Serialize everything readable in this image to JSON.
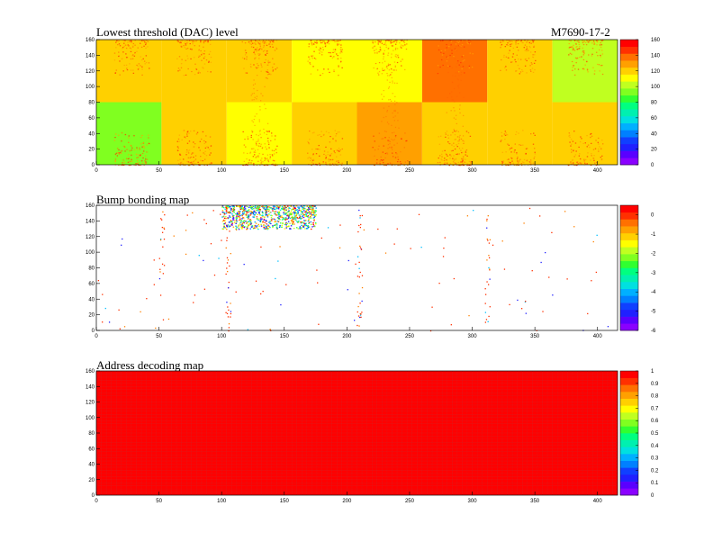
{
  "header": {
    "device_id": "M7690-17-2"
  },
  "chart_data": [
    {
      "type": "heatmap",
      "title": "Lowest threshold (DAC) level",
      "xlim": [
        0,
        416
      ],
      "ylim": [
        0,
        160
      ],
      "x_ticks": [
        "0",
        "50",
        "100",
        "150",
        "200",
        "250",
        "300",
        "350",
        "400"
      ],
      "y_ticks": [
        "0",
        "20",
        "40",
        "60",
        "80",
        "100",
        "120",
        "140",
        "160"
      ],
      "zlim": [
        0,
        160
      ],
      "z_ticks": [
        "0",
        "20",
        "40",
        "60",
        "80",
        "100",
        "120",
        "140",
        "160"
      ],
      "blocks": [
        {
          "chip": 0,
          "row": 0,
          "x0": 0,
          "y0": 0,
          "value": 92
        },
        {
          "chip": 1,
          "row": 0,
          "x0": 52,
          "y0": 0,
          "value": 118
        },
        {
          "chip": 2,
          "row": 0,
          "x0": 104,
          "y0": 0,
          "value": 115
        },
        {
          "chip": 3,
          "row": 0,
          "x0": 156,
          "y0": 0,
          "value": 116
        },
        {
          "chip": 4,
          "row": 0,
          "x0": 208,
          "y0": 0,
          "value": 133
        },
        {
          "chip": 5,
          "row": 0,
          "x0": 260,
          "y0": 0,
          "value": 116
        },
        {
          "chip": 6,
          "row": 0,
          "x0": 312,
          "y0": 0,
          "value": 121
        },
        {
          "chip": 7,
          "row": 0,
          "x0": 364,
          "y0": 0,
          "value": 121
        },
        {
          "chip": 8,
          "row": 1,
          "x0": 0,
          "y0": 80,
          "value": 117
        },
        {
          "chip": 9,
          "row": 1,
          "x0": 52,
          "y0": 80,
          "value": 116
        },
        {
          "chip": 10,
          "row": 1,
          "x0": 104,
          "y0": 80,
          "value": 116
        },
        {
          "chip": 11,
          "row": 1,
          "x0": 156,
          "y0": 80,
          "value": 115
        },
        {
          "chip": 12,
          "row": 1,
          "x0": 208,
          "y0": 80,
          "value": 115
        },
        {
          "chip": 13,
          "row": 1,
          "x0": 260,
          "y0": 80,
          "value": 134
        },
        {
          "chip": 14,
          "row": 1,
          "x0": 312,
          "y0": 80,
          "value": 120
        },
        {
          "chip": 15,
          "row": 1,
          "x0": 364,
          "y0": 80,
          "value": 104
        }
      ],
      "hot_columns_x": [
        28,
        78,
        130,
        182,
        234,
        286,
        336,
        390
      ]
    },
    {
      "type": "heatmap",
      "title": "Bump bonding map",
      "xlim": [
        0,
        416
      ],
      "ylim": [
        0,
        160
      ],
      "x_ticks": [
        "0",
        "50",
        "100",
        "150",
        "200",
        "250",
        "300",
        "350",
        "400"
      ],
      "y_ticks": [
        "0",
        "20",
        "40",
        "60",
        "80",
        "100",
        "120",
        "140",
        "160"
      ],
      "zlim": [
        -6,
        0.5
      ],
      "z_ticks": [
        "-6",
        "-5",
        "-4",
        "-3",
        "-2",
        "-1",
        "0"
      ],
      "empty_value": "white",
      "cluster": {
        "x_range": [
          100,
          175
        ],
        "y_range": [
          130,
          160
        ]
      },
      "column_features_x": [
        52,
        105,
        210,
        312
      ]
    },
    {
      "type": "heatmap",
      "title": "Address decoding map",
      "xlim": [
        0,
        416
      ],
      "ylim": [
        0,
        160
      ],
      "x_ticks": [
        "0",
        "50",
        "100",
        "150",
        "200",
        "250",
        "300",
        "350",
        "400"
      ],
      "y_ticks": [
        "0",
        "20",
        "40",
        "60",
        "80",
        "100",
        "120",
        "140",
        "160"
      ],
      "zlim": [
        0,
        1
      ],
      "z_ticks": [
        "0",
        "0.1",
        "0.2",
        "0.3",
        "0.4",
        "0.5",
        "0.6",
        "0.7",
        "0.8",
        "0.9",
        "1"
      ],
      "uniform_value": 1
    }
  ],
  "palette": [
    "#8a00ff",
    "#5a00ff",
    "#2020ff",
    "#1040ff",
    "#0080ff",
    "#00b0ff",
    "#00e0e0",
    "#00f0b0",
    "#00ff80",
    "#30ff30",
    "#80ff20",
    "#c0ff20",
    "#ffff00",
    "#ffd000",
    "#ffa000",
    "#ff7000",
    "#ff3000",
    "#ff0000"
  ],
  "colors": {
    "grid_line": "#c03030",
    "frame": "#000000"
  }
}
